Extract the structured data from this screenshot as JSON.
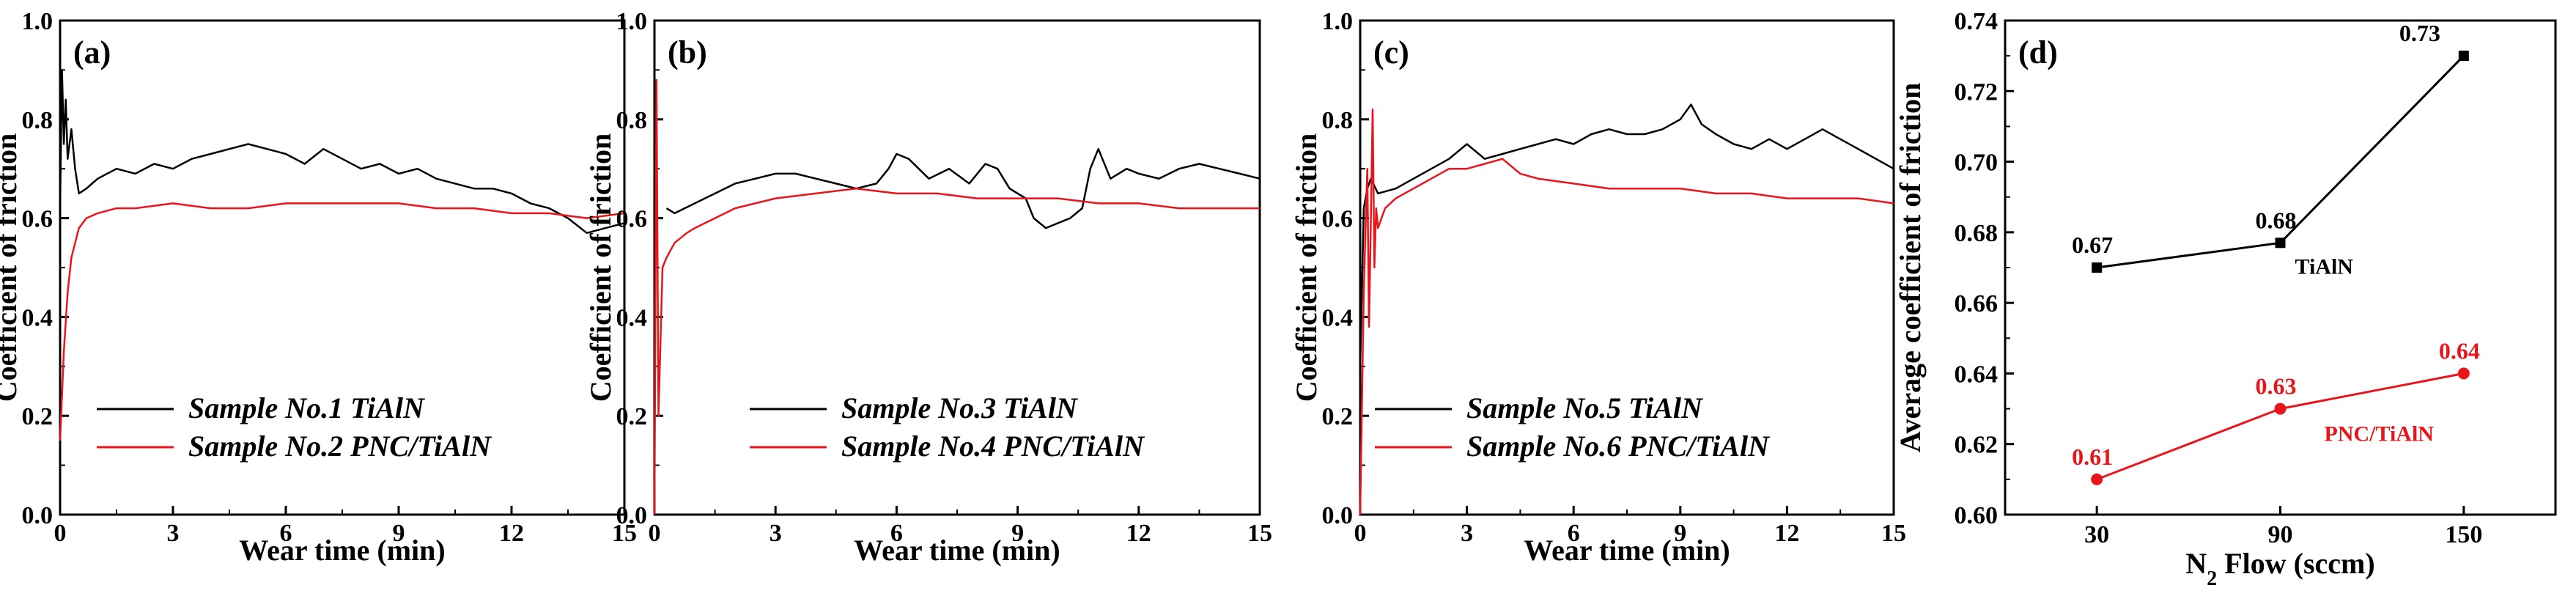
{
  "colors": {
    "black": "#000000",
    "red": "#e8161b"
  },
  "chart_data": [
    {
      "type": "line",
      "panel_label": "(a)",
      "xlabel": "Wear time (min)",
      "ylabel": "Coefficient of friction",
      "xlim": [
        0,
        15
      ],
      "ylim": [
        0,
        1.0
      ],
      "xticks": [
        0,
        3,
        6,
        9,
        12,
        15
      ],
      "xtick_labels": [
        "0",
        "3",
        "6",
        "9",
        "12",
        "15"
      ],
      "yticks": [
        0,
        0.2,
        0.4,
        0.6,
        0.8,
        1.0
      ],
      "ytick_labels": [
        "0.0",
        "0.2",
        "0.4",
        "0.6",
        "0.8",
        "1.0"
      ],
      "legend_position": "lower-center",
      "series": [
        {
          "name": "Sample No.1 TiAlN",
          "color": "#000000",
          "x": [
            0,
            0.05,
            0.1,
            0.15,
            0.2,
            0.3,
            0.4,
            0.5,
            0.7,
            1,
            1.5,
            2,
            2.5,
            3,
            3.5,
            4,
            4.5,
            5,
            5.5,
            6,
            6.5,
            7,
            7.5,
            8,
            8.5,
            9,
            9.5,
            10,
            10.5,
            11,
            11.5,
            12,
            12.5,
            13,
            13.5,
            14,
            14.5,
            15
          ],
          "y": [
            0.62,
            0.9,
            0.75,
            0.84,
            0.72,
            0.78,
            0.7,
            0.65,
            0.66,
            0.68,
            0.7,
            0.69,
            0.71,
            0.7,
            0.72,
            0.73,
            0.74,
            0.75,
            0.74,
            0.73,
            0.71,
            0.74,
            0.72,
            0.7,
            0.71,
            0.69,
            0.7,
            0.68,
            0.67,
            0.66,
            0.66,
            0.65,
            0.63,
            0.62,
            0.6,
            0.57,
            0.58,
            0.59
          ]
        },
        {
          "name": "Sample No.2 PNC/TiAlN",
          "color": "#e8161b",
          "x": [
            0,
            0.1,
            0.2,
            0.3,
            0.5,
            0.7,
            1,
            1.5,
            2,
            3,
            4,
            5,
            6,
            7,
            8,
            9,
            10,
            11,
            12,
            13,
            14,
            15
          ],
          "y": [
            0.15,
            0.33,
            0.45,
            0.52,
            0.58,
            0.6,
            0.61,
            0.62,
            0.62,
            0.63,
            0.62,
            0.62,
            0.63,
            0.63,
            0.63,
            0.63,
            0.62,
            0.62,
            0.61,
            0.61,
            0.6,
            0.61
          ]
        }
      ]
    },
    {
      "type": "line",
      "panel_label": "(b)",
      "xlabel": "Wear time (min)",
      "ylabel": "Coefficient of friction",
      "xlim": [
        0,
        15
      ],
      "ylim": [
        0,
        1.0
      ],
      "xticks": [
        0,
        3,
        6,
        9,
        12,
        15
      ],
      "xtick_labels": [
        "0",
        "3",
        "6",
        "9",
        "12",
        "15"
      ],
      "yticks": [
        0,
        0.2,
        0.4,
        0.6,
        0.8,
        1.0
      ],
      "ytick_labels": [
        "0.0",
        "0.2",
        "0.4",
        "0.6",
        "0.8",
        "1.0"
      ],
      "legend_position": "lower-center",
      "series": [
        {
          "name": "Sample No.3 TiAlN",
          "color": "#000000",
          "x": [
            0.3,
            0.5,
            1,
            1.5,
            2,
            2.5,
            3,
            3.5,
            4,
            4.5,
            5,
            5.5,
            5.8,
            6,
            6.3,
            6.8,
            7.3,
            7.8,
            8.2,
            8.5,
            8.8,
            9.2,
            9.4,
            9.7,
            10,
            10.3,
            10.6,
            10.8,
            11,
            11.3,
            11.7,
            12,
            12.5,
            13,
            13.5,
            14,
            14.5,
            15
          ],
          "y": [
            0.62,
            0.61,
            0.63,
            0.65,
            0.67,
            0.68,
            0.69,
            0.69,
            0.68,
            0.67,
            0.66,
            0.67,
            0.7,
            0.73,
            0.72,
            0.68,
            0.7,
            0.67,
            0.71,
            0.7,
            0.66,
            0.64,
            0.6,
            0.58,
            0.59,
            0.6,
            0.62,
            0.7,
            0.74,
            0.68,
            0.7,
            0.69,
            0.68,
            0.7,
            0.71,
            0.7,
            0.69,
            0.68
          ]
        },
        {
          "name": "Sample No.4 PNC/TiAlN",
          "color": "#e8161b",
          "x": [
            0,
            0.05,
            0.1,
            0.2,
            0.3,
            0.5,
            0.8,
            1,
            1.5,
            2,
            3,
            4,
            5,
            6,
            7,
            8,
            9,
            10,
            11,
            12,
            13,
            14,
            15
          ],
          "y": [
            0.0,
            0.88,
            0.2,
            0.5,
            0.52,
            0.55,
            0.57,
            0.58,
            0.6,
            0.62,
            0.64,
            0.65,
            0.66,
            0.65,
            0.65,
            0.64,
            0.64,
            0.64,
            0.63,
            0.63,
            0.62,
            0.62,
            0.62
          ]
        }
      ]
    },
    {
      "type": "line",
      "panel_label": "(c)",
      "xlabel": "Wear time (min)",
      "ylabel": "Coefficient of friction",
      "xlim": [
        0,
        15
      ],
      "ylim": [
        0,
        1.0
      ],
      "xticks": [
        0,
        3,
        6,
        9,
        12,
        15
      ],
      "xtick_labels": [
        "0",
        "3",
        "6",
        "9",
        "12",
        "15"
      ],
      "yticks": [
        0,
        0.2,
        0.4,
        0.6,
        0.8,
        1.0
      ],
      "ytick_labels": [
        "0.0",
        "0.2",
        "0.4",
        "0.6",
        "0.8",
        "1.0"
      ],
      "legend_position": "lower-center",
      "series": [
        {
          "name": "Sample No.5 TiAlN",
          "color": "#000000",
          "x": [
            0,
            0.1,
            0.2,
            0.3,
            0.5,
            1,
            1.5,
            2,
            2.5,
            3,
            3.5,
            4,
            4.5,
            5,
            5.5,
            6,
            6.5,
            7,
            7.5,
            8,
            8.5,
            9,
            9.3,
            9.6,
            10,
            10.5,
            11,
            11.5,
            12,
            12.5,
            13,
            13.5,
            14,
            14.5,
            15
          ],
          "y": [
            0.3,
            0.62,
            0.66,
            0.68,
            0.65,
            0.66,
            0.68,
            0.7,
            0.72,
            0.75,
            0.72,
            0.73,
            0.74,
            0.75,
            0.76,
            0.75,
            0.77,
            0.78,
            0.77,
            0.77,
            0.78,
            0.8,
            0.83,
            0.79,
            0.77,
            0.75,
            0.74,
            0.76,
            0.74,
            0.76,
            0.78,
            0.76,
            0.74,
            0.72,
            0.7
          ]
        },
        {
          "name": "Sample No.6 PNC/TiAlN",
          "color": "#e8161b",
          "x": [
            0,
            0.1,
            0.2,
            0.25,
            0.3,
            0.35,
            0.4,
            0.45,
            0.5,
            0.7,
            1,
            1.5,
            2,
            2.5,
            3,
            3.5,
            4,
            4.5,
            5,
            6,
            7,
            8,
            9,
            10,
            11,
            12,
            13,
            14,
            15
          ],
          "y": [
            0.0,
            0.45,
            0.7,
            0.38,
            0.6,
            0.82,
            0.5,
            0.62,
            0.58,
            0.62,
            0.64,
            0.66,
            0.68,
            0.7,
            0.7,
            0.71,
            0.72,
            0.69,
            0.68,
            0.67,
            0.66,
            0.66,
            0.66,
            0.65,
            0.65,
            0.64,
            0.64,
            0.64,
            0.63
          ]
        }
      ]
    },
    {
      "type": "line",
      "panel_label": "(d)",
      "xlabel": "N",
      "xlabel_subscript": "2",
      "xlabel_suffix": " Flow (sccm)",
      "ylabel": "Average coefficient of friction",
      "categories": [
        "30",
        "90",
        "150"
      ],
      "xticks": [
        30,
        90,
        150
      ],
      "xlim": [
        0,
        180
      ],
      "ylim": [
        0.6,
        0.74
      ],
      "yticks": [
        0.6,
        0.62,
        0.64,
        0.66,
        0.68,
        0.7,
        0.72,
        0.74
      ],
      "ytick_labels": [
        "0.60",
        "0.62",
        "0.64",
        "0.66",
        "0.68",
        "0.70",
        "0.72",
        "0.74"
      ],
      "series": [
        {
          "name": "TiAlN",
          "color": "#000000",
          "marker": "square",
          "x": [
            30,
            90,
            150
          ],
          "y": [
            0.67,
            0.677,
            0.73
          ],
          "labels": [
            "0.67",
            "0.68",
            "0.73"
          ]
        },
        {
          "name": "PNC/TiAlN",
          "color": "#e8161b",
          "marker": "circle",
          "x": [
            30,
            90,
            150
          ],
          "y": [
            0.61,
            0.63,
            0.64
          ],
          "labels": [
            "0.61",
            "0.63",
            "0.64"
          ]
        }
      ]
    }
  ]
}
